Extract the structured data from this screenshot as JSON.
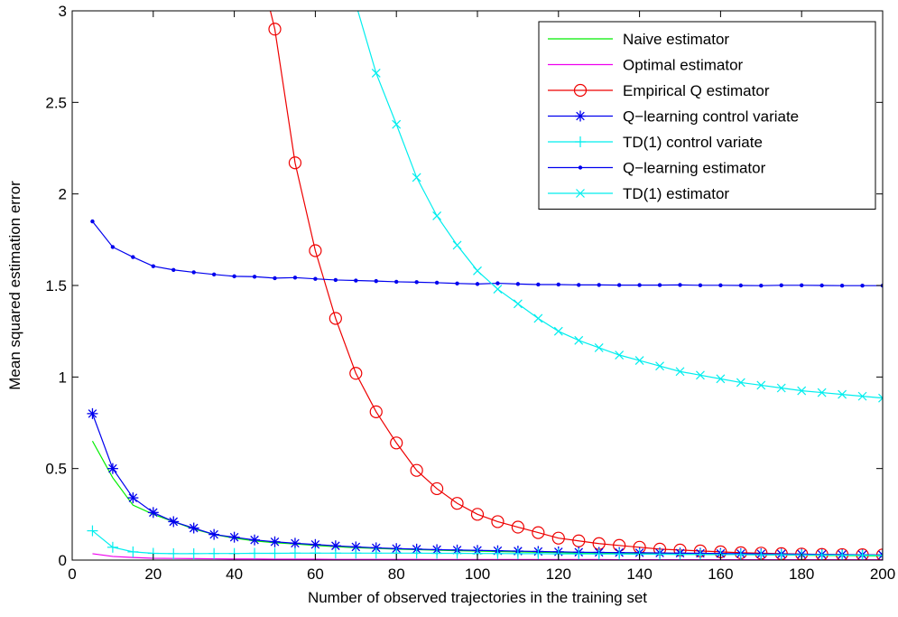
{
  "chart_data": {
    "type": "line",
    "title": "",
    "xlabel": "Number of observed trajectories in the training set",
    "ylabel": "Mean squared estimation error",
    "xlim": [
      0,
      200
    ],
    "ylim": [
      0,
      3
    ],
    "xticks": [
      0,
      20,
      40,
      60,
      80,
      100,
      120,
      140,
      160,
      180,
      200
    ],
    "yticks": [
      0,
      0.5,
      1,
      1.5,
      2,
      2.5,
      3
    ],
    "ytick_labels": [
      "0",
      "0.5",
      "1",
      "1.5",
      "2",
      "2.5",
      "3"
    ],
    "grid": false,
    "legend_position": "top-right",
    "x": [
      5,
      10,
      15,
      20,
      25,
      30,
      35,
      40,
      45,
      50,
      55,
      60,
      65,
      70,
      75,
      80,
      85,
      90,
      95,
      100,
      105,
      110,
      115,
      120,
      125,
      130,
      135,
      140,
      145,
      150,
      155,
      160,
      165,
      170,
      175,
      180,
      185,
      190,
      195,
      200
    ],
    "series": [
      {
        "name": "Naive estimator",
        "color": "#00ee00",
        "marker": "none",
        "values": [
          0.65,
          0.45,
          0.3,
          0.25,
          0.21,
          0.17,
          0.14,
          0.12,
          0.105,
          0.095,
          0.088,
          0.08,
          0.073,
          0.068,
          0.064,
          0.06,
          0.057,
          0.054,
          0.051,
          0.049,
          0.047,
          0.045,
          0.043,
          0.041,
          0.039,
          0.038,
          0.037,
          0.035,
          0.034,
          0.033,
          0.032,
          0.031,
          0.03,
          0.029,
          0.028,
          0.027,
          0.026,
          0.025,
          0.024,
          0.023
        ]
      },
      {
        "name": "Optimal estimator",
        "color": "#ee00ee",
        "marker": "none",
        "values": [
          0.035,
          0.02,
          0.014,
          0.01,
          0.009,
          0.008,
          0.007,
          0.006,
          0.006,
          0.005,
          0.005,
          0.005,
          0.004,
          0.004,
          0.004,
          0.004,
          0.004,
          0.003,
          0.003,
          0.003,
          0.003,
          0.003,
          0.003,
          0.003,
          0.003,
          0.003,
          0.002,
          0.002,
          0.002,
          0.002,
          0.002,
          0.002,
          0.002,
          0.002,
          0.002,
          0.002,
          0.002,
          0.002,
          0.002,
          0.002
        ]
      },
      {
        "name": "Empirical Q estimator",
        "color": "#ee0000",
        "marker": "circle",
        "x": [
          50,
          55,
          60,
          65,
          70,
          75,
          80,
          85,
          90,
          95,
          100,
          105,
          110,
          115,
          120,
          125,
          130,
          135,
          140,
          145,
          150,
          155,
          160,
          165,
          170,
          175,
          180,
          185,
          190,
          195,
          200
        ],
        "values": [
          2.9,
          2.17,
          1.69,
          1.32,
          1.02,
          0.81,
          0.64,
          0.49,
          0.39,
          0.31,
          0.25,
          0.21,
          0.18,
          0.15,
          0.12,
          0.105,
          0.09,
          0.08,
          0.07,
          0.06,
          0.055,
          0.05,
          0.045,
          0.04,
          0.038,
          0.035,
          0.033,
          0.031,
          0.03,
          0.029,
          0.028
        ],
        "line_start": [
          48.9,
          3.0
        ]
      },
      {
        "name": "Q−learning control variate",
        "color": "#0000ee",
        "marker": "star",
        "values": [
          0.8,
          0.5,
          0.34,
          0.26,
          0.21,
          0.175,
          0.14,
          0.125,
          0.11,
          0.1,
          0.092,
          0.085,
          0.078,
          0.072,
          0.067,
          0.063,
          0.06,
          0.057,
          0.055,
          0.053,
          0.051,
          0.049,
          0.047,
          0.045,
          0.043,
          0.042,
          0.041,
          0.04,
          0.039,
          0.038,
          0.037,
          0.036,
          0.035,
          0.034,
          0.033,
          0.032,
          0.031,
          0.03,
          0.029,
          0.028
        ]
      },
      {
        "name": "TD(1) control variate",
        "color": "#00eeee",
        "marker": "plus",
        "values": [
          0.16,
          0.07,
          0.045,
          0.037,
          0.035,
          0.035,
          0.036,
          0.036,
          0.037,
          0.037,
          0.038,
          0.038,
          0.038,
          0.038,
          0.038,
          0.038,
          0.038,
          0.037,
          0.037,
          0.036,
          0.036,
          0.035,
          0.035,
          0.034,
          0.034,
          0.033,
          0.033,
          0.032,
          0.032,
          0.031,
          0.031,
          0.03,
          0.03,
          0.029,
          0.029,
          0.028,
          0.028,
          0.027,
          0.027,
          0.026
        ]
      },
      {
        "name": "Q−learning estimator",
        "color": "#0000ee",
        "marker": "dot",
        "values": [
          1.85,
          1.71,
          1.655,
          1.605,
          1.585,
          1.572,
          1.56,
          1.55,
          1.548,
          1.54,
          1.543,
          1.536,
          1.53,
          1.527,
          1.524,
          1.52,
          1.518,
          1.515,
          1.511,
          1.508,
          1.512,
          1.508,
          1.505,
          1.505,
          1.503,
          1.503,
          1.502,
          1.502,
          1.502,
          1.503,
          1.501,
          1.501,
          1.5,
          1.499,
          1.501,
          1.501,
          1.5,
          1.499,
          1.499,
          1.499
        ]
      },
      {
        "name": "TD(1) estimator",
        "color": "#00eeee",
        "marker": "x",
        "x": [
          75,
          80,
          85,
          90,
          95,
          100,
          105,
          110,
          115,
          120,
          125,
          130,
          135,
          140,
          145,
          150,
          155,
          160,
          165,
          170,
          175,
          180,
          185,
          190,
          195,
          200
        ],
        "values": [
          2.66,
          2.38,
          2.09,
          1.88,
          1.72,
          1.58,
          1.48,
          1.4,
          1.32,
          1.25,
          1.2,
          1.16,
          1.12,
          1.09,
          1.06,
          1.03,
          1.01,
          0.99,
          0.97,
          0.955,
          0.94,
          0.925,
          0.915,
          0.905,
          0.895,
          0.885
        ],
        "line_start": [
          70.5,
          3.0
        ]
      }
    ]
  }
}
